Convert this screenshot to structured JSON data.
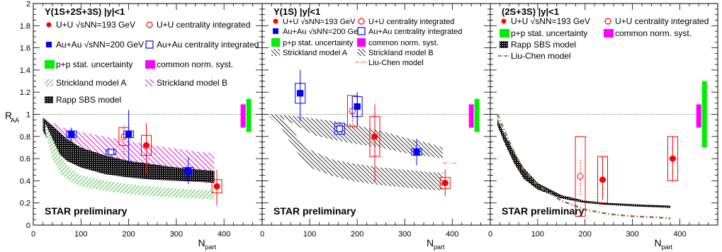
{
  "figure": {
    "ylabel": "R",
    "ylabel_sub": "AA",
    "xlabel": "N",
    "xlabel_sub": "part",
    "preliminary": "STAR preliminary",
    "y_ticks": [
      "0",
      "0.2",
      "0.4",
      "0.6",
      "0.8",
      "1",
      "1.2",
      "1.4",
      "1.6",
      "1.8",
      "2"
    ],
    "x_ticks": [
      "0",
      "100",
      "200",
      "300",
      "400"
    ]
  },
  "chart_data": [
    {
      "type": "scatter",
      "title": "Υ(1S+2S+3S)  |y|<1",
      "xlim": [
        0,
        480
      ],
      "ylim": [
        0,
        2
      ],
      "xlabel": "Npart",
      "ylabel": "RAA",
      "legend_position": "top",
      "legend": [
        {
          "key": "uu",
          "text": "U+U √sNN=193 GeV"
        },
        {
          "key": "uu_int",
          "text": "U+U centrality integrated"
        },
        {
          "key": "auau",
          "text": "Au+Au √sNN=200 GeV"
        },
        {
          "key": "auau_int",
          "text": "Au+Au centrality integrated"
        },
        {
          "key": "pp",
          "text": "p+p stat. uncertainty"
        },
        {
          "key": "norm",
          "text": "common norm. syst."
        },
        {
          "key": "stA",
          "text": "Strickland model A"
        },
        {
          "key": "stB",
          "text": "Strickland model B"
        },
        {
          "key": "rapp",
          "text": "Rapp SBS model"
        }
      ],
      "series": [
        {
          "name": "U+U √sNN=193 GeV",
          "marker": "circle",
          "color": "#ff0000",
          "points": [
            {
              "x": 237,
              "y": 0.72,
              "err_lo": 0.26,
              "err_hi": 0.2,
              "sys": 0.09
            },
            {
              "x": 385,
              "y": 0.35,
              "err_lo": 0.17,
              "err_hi": 0.15,
              "sys": 0.06
            }
          ]
        },
        {
          "name": "U+U centrality integrated",
          "marker": "open-circle",
          "color": "#ff0000",
          "points": [
            {
              "x": 190,
              "y": 0.8,
              "err_lo": 0.17,
              "err_hi": 0.1,
              "sys": 0.08
            }
          ]
        },
        {
          "name": "Au+Au √sNN=200 GeV",
          "marker": "square",
          "color": "#0000ff",
          "points": [
            {
              "x": 80,
              "y": 0.82,
              "err_lo": 0.06,
              "err_hi": 0.06,
              "sys": 0.03
            },
            {
              "x": 200,
              "y": 0.82,
              "err_lo": 0.26,
              "err_hi": 0.22,
              "sys": 0.03
            },
            {
              "x": 325,
              "y": 0.49,
              "err_lo": 0.12,
              "err_hi": 0.12,
              "sys": 0.03
            }
          ]
        },
        {
          "name": "Au+Au centrality integrated",
          "marker": "open-square",
          "color": "#0000ff",
          "points": [
            {
              "x": 163,
              "y": 0.66,
              "err_lo": 0.03,
              "err_hi": 0.03,
              "sys": 0.02
            }
          ]
        }
      ],
      "bands": [
        {
          "name": "Strickland model B",
          "style": "hatch-magenta",
          "x": [
            25,
            60,
            100,
            150,
            200,
            250,
            300,
            350,
            380
          ],
          "y_lo": [
            0.9,
            0.75,
            0.66,
            0.58,
            0.52,
            0.47,
            0.43,
            0.41,
            0.4
          ],
          "y_hi": [
            0.96,
            0.88,
            0.84,
            0.8,
            0.76,
            0.72,
            0.69,
            0.66,
            0.65
          ]
        },
        {
          "name": "Rapp SBS model",
          "style": "dense-black",
          "x": [
            20,
            40,
            70,
            100,
            150,
            200,
            250,
            300,
            350,
            380
          ],
          "y_lo": [
            0.85,
            0.7,
            0.58,
            0.52,
            0.46,
            0.43,
            0.41,
            0.4,
            0.39,
            0.38
          ],
          "y_hi": [
            0.97,
            0.9,
            0.78,
            0.7,
            0.63,
            0.58,
            0.55,
            0.52,
            0.5,
            0.49
          ]
        },
        {
          "name": "Strickland model A",
          "style": "hatch-green",
          "x": [
            25,
            40,
            60,
            80,
            100,
            150,
            200,
            250,
            300,
            350,
            380
          ],
          "y_lo": [
            0.85,
            0.6,
            0.45,
            0.39,
            0.35,
            0.31,
            0.28,
            0.26,
            0.25,
            0.24,
            0.23
          ],
          "y_hi": [
            0.92,
            0.78,
            0.6,
            0.5,
            0.45,
            0.4,
            0.37,
            0.35,
            0.33,
            0.32,
            0.31
          ]
        }
      ],
      "lines": [],
      "global_boxes": [
        {
          "name": "common norm. syst.",
          "x": 440,
          "y_lo": 0.88,
          "y_hi": 1.09,
          "color": "#ff00ff"
        },
        {
          "name": "p+p stat. uncertainty",
          "x": 452,
          "y_lo": 0.84,
          "y_hi": 1.14,
          "color": "#00ee00"
        }
      ]
    },
    {
      "type": "scatter",
      "title": "Υ(1S)  |y|<1",
      "xlim": [
        0,
        480
      ],
      "ylim": [
        0,
        2
      ],
      "xlabel": "Npart",
      "ylabel": "RAA",
      "legend_position": "top",
      "legend": [
        {
          "key": "uu",
          "text": "U+U √sNN=193 GeV"
        },
        {
          "key": "uu_int",
          "text": "U+U centrality integrated"
        },
        {
          "key": "auau",
          "text": "Au+Au √sNN=200 GeV"
        },
        {
          "key": "auau_int",
          "text": "Au+Au centrality integrated"
        },
        {
          "key": "pp",
          "text": "p+p stat. uncertainty"
        },
        {
          "key": "norm",
          "text": "common norm. syst."
        },
        {
          "key": "stA",
          "text": "Strickland model A"
        },
        {
          "key": "stB",
          "text": "Strickland model B"
        },
        {
          "key": "lc",
          "text": "Liu-Chen model"
        }
      ],
      "series": [
        {
          "name": "U+U √sNN=193 GeV",
          "marker": "circle",
          "color": "#ff0000",
          "points": [
            {
              "x": 237,
              "y": 0.8,
              "err_lo": 0.41,
              "err_hi": 0.29,
              "sys": 0.18
            },
            {
              "x": 385,
              "y": 0.38,
              "err_lo": 0.12,
              "err_hi": 0.12,
              "sys": 0.05
            }
          ]
        },
        {
          "name": "U+U centrality integrated",
          "marker": "open-circle",
          "color": "#ff0000",
          "points": [
            {
              "x": 190,
              "y": 1.03,
              "err_lo": 0.15,
              "err_hi": 0.12,
              "sys": 0.14
            }
          ]
        },
        {
          "name": "Au+Au √sNN=200 GeV",
          "marker": "square",
          "color": "#0000ff",
          "points": [
            {
              "x": 80,
              "y": 1.19,
              "err_lo": 0.25,
              "err_hi": 0.21,
              "sys": 0.09
            },
            {
              "x": 200,
              "y": 1.07,
              "err_lo": 0.17,
              "err_hi": 0.13,
              "sys": 0.09
            },
            {
              "x": 325,
              "y": 0.66,
              "err_lo": 0.12,
              "err_hi": 0.12,
              "sys": 0.03
            }
          ]
        },
        {
          "name": "Au+Au centrality integrated",
          "marker": "open-square",
          "color": "#0000ff",
          "points": [
            {
              "x": 163,
              "y": 0.87,
              "err_lo": 0.04,
              "err_hi": 0.04,
              "sys": 0.05
            }
          ]
        }
      ],
      "bands": [
        {
          "name": "Strickland model B",
          "style": "hatch-black",
          "x": [
            15,
            50,
            80,
            110,
            150,
            200,
            250,
            300,
            350,
            380
          ],
          "y_lo": [
            0.98,
            0.95,
            0.88,
            0.81,
            0.77,
            0.73,
            0.7,
            0.65,
            0.62,
            0.6
          ],
          "y_hi": [
            1.0,
            0.99,
            0.98,
            0.96,
            0.94,
            0.9,
            0.85,
            0.79,
            0.74,
            0.7
          ]
        },
        {
          "name": "Strickland model A",
          "style": "hatch-black",
          "x": [
            15,
            40,
            60,
            80,
            100,
            150,
            200,
            250,
            300,
            350,
            380
          ],
          "y_lo": [
            0.98,
            0.88,
            0.74,
            0.62,
            0.52,
            0.44,
            0.39,
            0.36,
            0.34,
            0.32,
            0.31
          ],
          "y_hi": [
            1.0,
            0.96,
            0.88,
            0.76,
            0.68,
            0.59,
            0.55,
            0.52,
            0.5,
            0.48,
            0.47
          ]
        }
      ],
      "lines": [
        {
          "name": "Liu-Chen model",
          "style": "dashdot",
          "color": "#ff9999",
          "x": [
            380,
            395,
            410
          ],
          "y": [
            0.56,
            0.56,
            0.56
          ]
        }
      ],
      "global_boxes": [
        {
          "name": "common norm. syst.",
          "x": 440,
          "y_lo": 0.88,
          "y_hi": 1.09,
          "color": "#ff00ff"
        },
        {
          "name": "p+p stat. uncertainty",
          "x": 452,
          "y_lo": 0.84,
          "y_hi": 1.14,
          "color": "#00ee00"
        }
      ]
    },
    {
      "type": "scatter",
      "title": "(2S+3S)  |y|<1",
      "xlim": [
        0,
        480
      ],
      "ylim": [
        0,
        2
      ],
      "xlabel": "Npart",
      "ylabel": "RAA",
      "legend_position": "top",
      "legend": [
        {
          "key": "uu",
          "text": "U+U √sNN=193 GeV"
        },
        {
          "key": "uu_int",
          "text": "U+U centrality integrated"
        },
        {
          "key": "pp",
          "text": "p+p stat. uncertainty"
        },
        {
          "key": "norm",
          "text": "common norm. syst."
        },
        {
          "key": "rapp",
          "text": "Rapp SBS model"
        },
        {
          "key": "lc",
          "text": "Liu-Chen model"
        }
      ],
      "series": [
        {
          "name": "U+U √sNN=193 GeV",
          "marker": "circle",
          "color": "#ff0000",
          "points": [
            {
              "x": 237,
              "y": 0.41,
              "err_lo": 0.18,
              "err_hi": 0.21,
              "sys": 0.21
            },
            {
              "x": 385,
              "y": 0.6,
              "err_lo": 0.2,
              "err_hi": 0.2,
              "sys": 0.2
            }
          ]
        },
        {
          "name": "U+U centrality integrated",
          "marker": "open-circle",
          "color": "#ff0000",
          "points": [
            {
              "x": 190,
              "y": 0.44,
              "err_lo": 0.17,
              "err_hi": 0.15,
              "sys": 0.36
            }
          ]
        }
      ],
      "bands": [
        {
          "name": "Rapp SBS model",
          "style": "dense-black",
          "x": [
            15,
            30,
            50,
            70,
            100,
            150,
            200,
            250,
            300,
            350,
            380
          ],
          "y_lo": [
            0.9,
            0.74,
            0.56,
            0.42,
            0.32,
            0.24,
            0.2,
            0.18,
            0.17,
            0.16,
            0.155
          ],
          "y_hi": [
            0.96,
            0.82,
            0.66,
            0.52,
            0.38,
            0.27,
            0.22,
            0.2,
            0.19,
            0.18,
            0.175
          ]
        }
      ],
      "lines": [
        {
          "name": "Liu-Chen model",
          "style": "dashdot",
          "color": "#8c6e5a",
          "x": [
            15,
            30,
            50,
            70,
            100,
            150,
            200,
            250,
            300,
            350,
            380
          ],
          "y": [
            1.0,
            0.85,
            0.66,
            0.5,
            0.36,
            0.22,
            0.14,
            0.1,
            0.08,
            0.07,
            0.06
          ]
        }
      ],
      "global_boxes": [
        {
          "name": "common norm. syst.",
          "x": 440,
          "y_lo": 0.88,
          "y_hi": 1.09,
          "color": "#ff00ff"
        },
        {
          "name": "p+p stat. uncertainty",
          "x": 452,
          "y_lo": 0.7,
          "y_hi": 1.3,
          "color": "#00ee00"
        }
      ]
    }
  ]
}
